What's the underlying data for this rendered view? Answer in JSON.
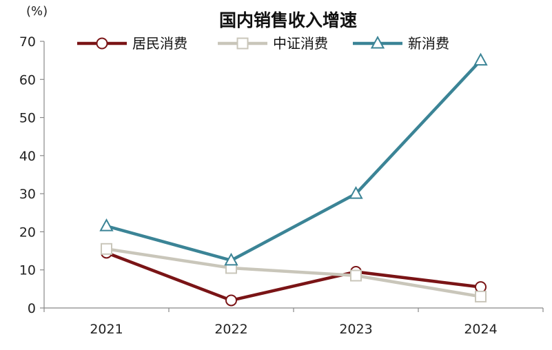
{
  "chart_data": {
    "type": "line",
    "title": "国内销售收入增速",
    "unit_label": "(%)",
    "categories": [
      "2021",
      "2022",
      "2023",
      "2024"
    ],
    "ylim": [
      0,
      70
    ],
    "yticks": [
      "0",
      "10",
      "20",
      "30",
      "40",
      "50",
      "60",
      "70"
    ],
    "legend_position": "top",
    "grid": false,
    "series": [
      {
        "name": "居民消费",
        "color": "#7a1416",
        "marker": "circle",
        "values": [
          14.5,
          2,
          9.5,
          5.5
        ]
      },
      {
        "name": "中证消费",
        "color": "#c9c6ba",
        "marker": "square",
        "values": [
          15.5,
          10.5,
          8.5,
          3
        ]
      },
      {
        "name": "新消费",
        "color": "#3b8496",
        "marker": "triangle",
        "values": [
          21.5,
          12.5,
          30,
          65
        ]
      }
    ]
  }
}
